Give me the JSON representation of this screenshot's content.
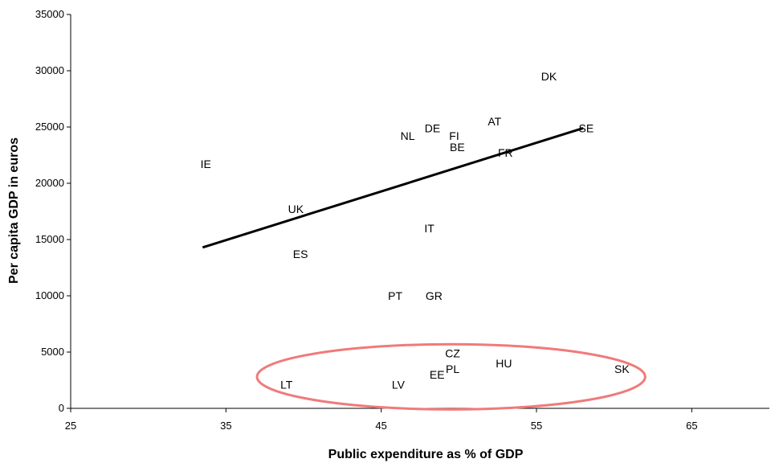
{
  "chart_data": {
    "type": "scatter",
    "title": "",
    "xlabel": "Public expenditure as % of GDP",
    "ylabel": "Per capita GDP in euros",
    "xlim": [
      25,
      70
    ],
    "ylim": [
      0,
      35000
    ],
    "xticks": [
      25,
      35,
      45,
      55,
      65
    ],
    "yticks": [
      0,
      5000,
      10000,
      15000,
      20000,
      25000,
      30000,
      35000
    ],
    "grid": false,
    "points": [
      {
        "label": "DK",
        "x": 55.8,
        "y": 29500
      },
      {
        "label": "AT",
        "x": 52.3,
        "y": 25500
      },
      {
        "label": "SE",
        "x": 58.2,
        "y": 24900
      },
      {
        "label": "DE",
        "x": 48.3,
        "y": 24900
      },
      {
        "label": "NL",
        "x": 46.7,
        "y": 24200
      },
      {
        "label": "FI",
        "x": 49.7,
        "y": 24200
      },
      {
        "label": "BE",
        "x": 49.9,
        "y": 23200
      },
      {
        "label": "FR",
        "x": 53.0,
        "y": 22700
      },
      {
        "label": "IE",
        "x": 33.7,
        "y": 21700
      },
      {
        "label": "UK",
        "x": 39.5,
        "y": 17700
      },
      {
        "label": "IT",
        "x": 48.1,
        "y": 16000
      },
      {
        "label": "ES",
        "x": 39.8,
        "y": 13700
      },
      {
        "label": "PT",
        "x": 45.9,
        "y": 10000
      },
      {
        "label": "GR",
        "x": 48.4,
        "y": 10000
      },
      {
        "label": "CZ",
        "x": 49.6,
        "y": 4900
      },
      {
        "label": "HU",
        "x": 52.9,
        "y": 4000
      },
      {
        "label": "PL",
        "x": 49.6,
        "y": 3500
      },
      {
        "label": "SK",
        "x": 60.5,
        "y": 3500
      },
      {
        "label": "EE",
        "x": 48.6,
        "y": 3000
      },
      {
        "label": "LT",
        "x": 38.9,
        "y": 2100
      },
      {
        "label": "LV",
        "x": 46.1,
        "y": 2100
      }
    ],
    "trendline": {
      "x": [
        33.5,
        58.0
      ],
      "y": [
        14300,
        24900
      ]
    },
    "highlight_ellipse": {
      "cx": 49.5,
      "cy": 2800,
      "rx": 12.5,
      "ry": 2900,
      "color": "#f07a7a"
    },
    "colors": {
      "axis": "#000000",
      "trendline": "#000000",
      "text": "#000000"
    }
  }
}
